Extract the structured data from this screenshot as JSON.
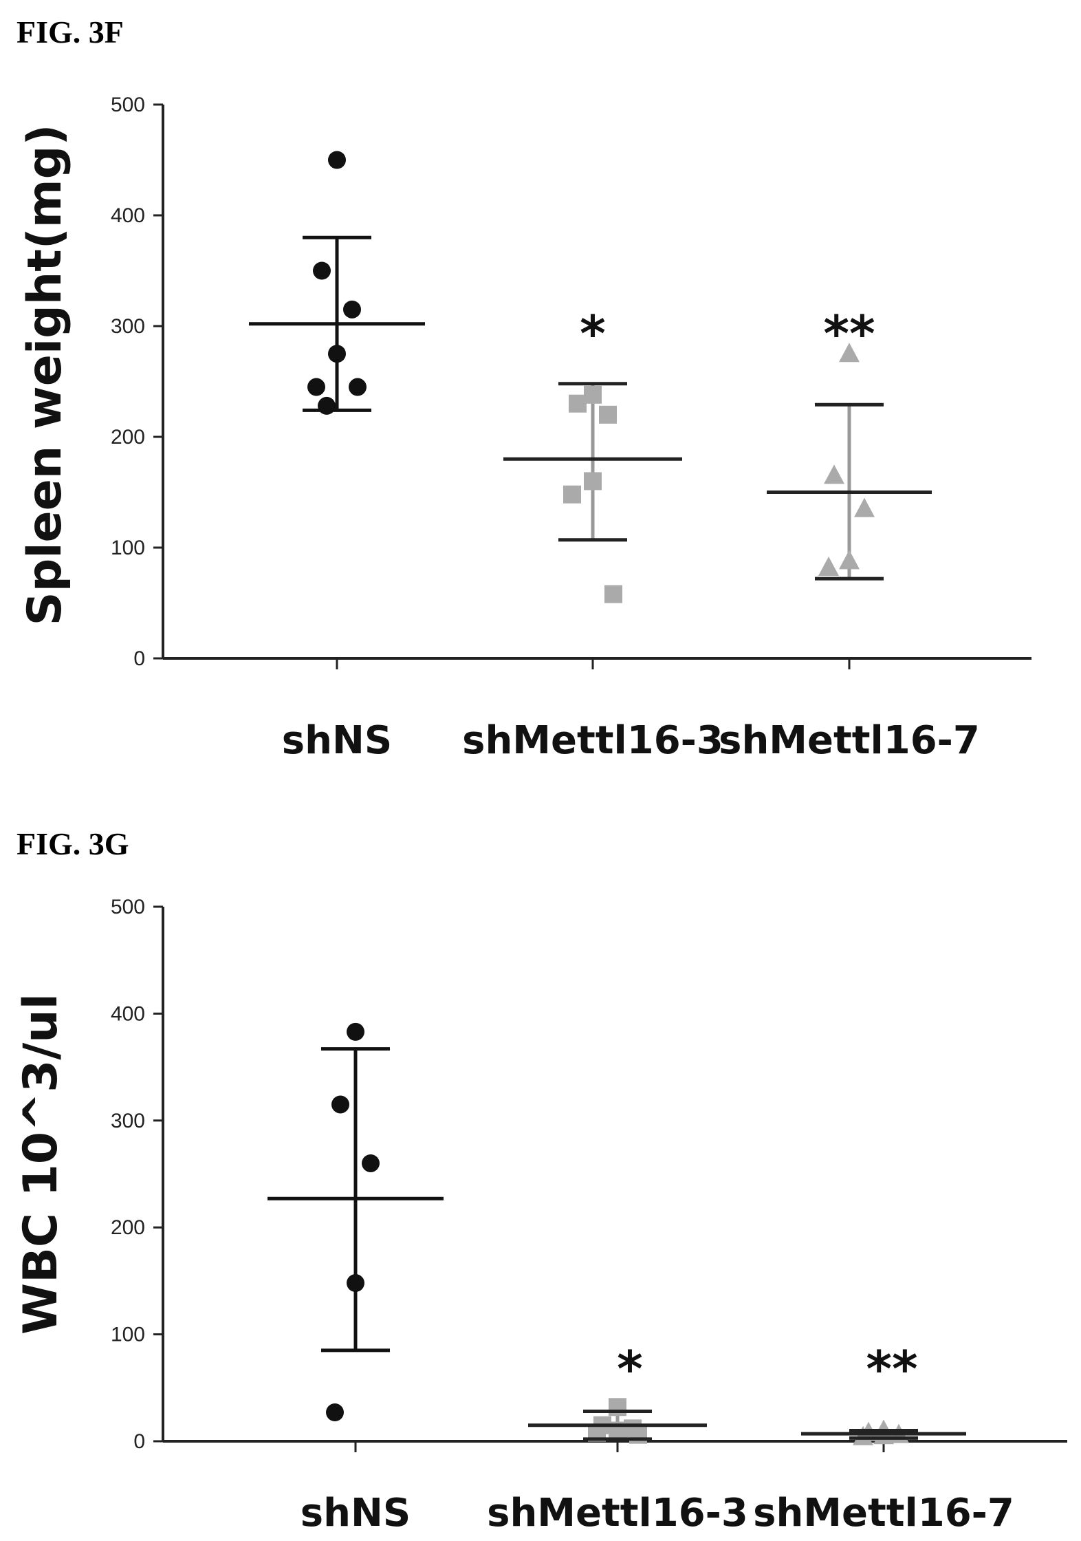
{
  "chart_data": [
    {
      "type": "scatter",
      "title": "FIG. 3F",
      "xlabel": "",
      "ylabel": "Spleen weight(mg)",
      "ylim": [
        0,
        500
      ],
      "yticks": [
        "0",
        "100",
        "200",
        "300",
        "400",
        "500"
      ],
      "categories": [
        "shNS",
        "shMettl16-3",
        "shMettl16-7"
      ],
      "series": [
        {
          "category": "shNS",
          "marker": "circle",
          "color": "#111111",
          "points": [
            450,
            350,
            315,
            275,
            245,
            245,
            228
          ],
          "mean": 302,
          "error": [
            224,
            380
          ],
          "significance": ""
        },
        {
          "category": "shMettl16-3",
          "marker": "square",
          "color": "#aaaaaa",
          "points": [
            238,
            230,
            220,
            160,
            148,
            58
          ],
          "mean": 180,
          "error": [
            107,
            248
          ],
          "significance": "*"
        },
        {
          "category": "shMettl16-7",
          "marker": "triangle",
          "color": "#aaaaaa",
          "points": [
            275,
            165,
            135,
            88,
            82
          ],
          "mean": 150,
          "error": [
            72,
            229
          ],
          "significance": "**"
        }
      ],
      "grid": false,
      "legend": "none"
    },
    {
      "type": "scatter",
      "title": "FIG. 3G",
      "xlabel": "",
      "ylabel": "WBC 10^3/ul",
      "ylim": [
        0,
        500
      ],
      "yticks": [
        "0",
        "100",
        "200",
        "300",
        "400",
        "500"
      ],
      "categories": [
        "shNS",
        "shMettl16-3",
        "shMettl16-7"
      ],
      "series": [
        {
          "category": "shNS",
          "marker": "circle",
          "color": "#111111",
          "points": [
            383,
            315,
            260,
            148,
            27
          ],
          "mean": 227,
          "error": [
            85,
            367
          ],
          "significance": ""
        },
        {
          "category": "shMettl16-3",
          "marker": "square",
          "color": "#aaaaaa",
          "points": [
            32,
            15,
            12,
            10,
            8,
            6
          ],
          "mean": 15,
          "error": [
            2,
            28
          ],
          "significance": "*"
        },
        {
          "category": "shMettl16-7",
          "marker": "triangle",
          "color": "#aaaaaa",
          "points": [
            10,
            8,
            6,
            5,
            4
          ],
          "mean": 7,
          "error": [
            3,
            10
          ],
          "significance": "**"
        }
      ],
      "grid": false,
      "legend": "none"
    }
  ]
}
